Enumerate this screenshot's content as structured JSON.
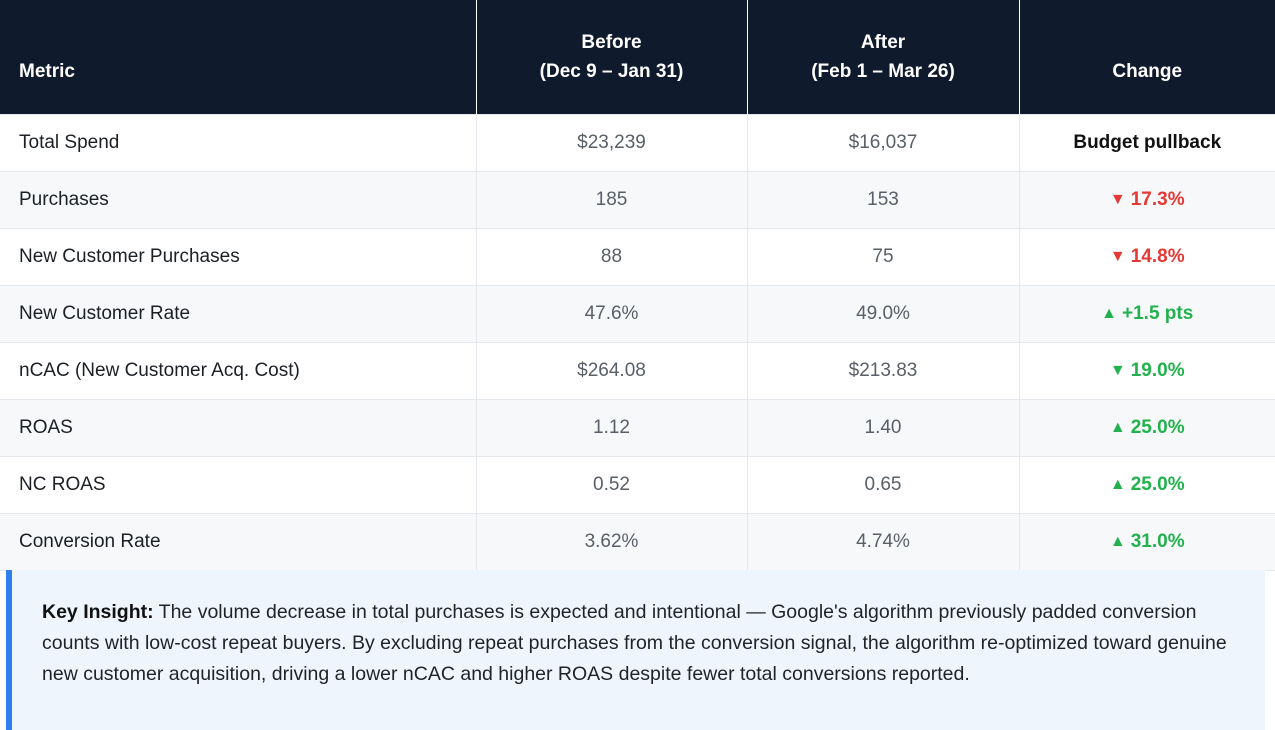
{
  "table": {
    "headers": {
      "metric": "Metric",
      "before_title": "Before",
      "before_range": "(Dec 9 – Jan 31)",
      "after_title": "After",
      "after_range": "(Feb 1 – Mar 26)",
      "change": "Change"
    },
    "rows": [
      {
        "metric": "Total Spend",
        "before": "$23,239",
        "after": "$16,037",
        "arrow": "",
        "change": "Budget pullback",
        "status": "neutral"
      },
      {
        "metric": "Purchases",
        "before": "185",
        "after": "153",
        "arrow": "▼",
        "change": "17.3%",
        "status": "bad"
      },
      {
        "metric": "New Customer Purchases",
        "before": "88",
        "after": "75",
        "arrow": "▼",
        "change": "14.8%",
        "status": "bad"
      },
      {
        "metric": "New Customer Rate",
        "before": "47.6%",
        "after": "49.0%",
        "arrow": "▲",
        "change": "+1.5 pts",
        "status": "good"
      },
      {
        "metric": "nCAC (New Customer Acq. Cost)",
        "before": "$264.08",
        "after": "$213.83",
        "arrow": "▼",
        "change": "19.0%",
        "status": "good"
      },
      {
        "metric": "ROAS",
        "before": "1.12",
        "after": "1.40",
        "arrow": "▲",
        "change": "25.0%",
        "status": "good"
      },
      {
        "metric": "NC ROAS",
        "before": "0.52",
        "after": "0.65",
        "arrow": "▲",
        "change": "25.0%",
        "status": "good"
      },
      {
        "metric": "Conversion Rate",
        "before": "3.62%",
        "after": "4.74%",
        "arrow": "▲",
        "change": "31.0%",
        "status": "good"
      }
    ]
  },
  "insight": {
    "label": "Key Insight:",
    "text": "The volume decrease in total purchases is expected and intentional — Google's algorithm previously padded conversion counts with low-cost repeat buyers. By excluding repeat purchases from the conversion signal, the algorithm re-optimized toward genuine new customer acquisition, driving a lower nCAC and higher ROAS despite fewer total conversions reported."
  },
  "colors": {
    "header_bg": "#0f1b2d",
    "negative": "#e53935",
    "positive": "#22b14c",
    "insight_bg": "#eef5fd",
    "insight_accent": "#2f80ed"
  }
}
